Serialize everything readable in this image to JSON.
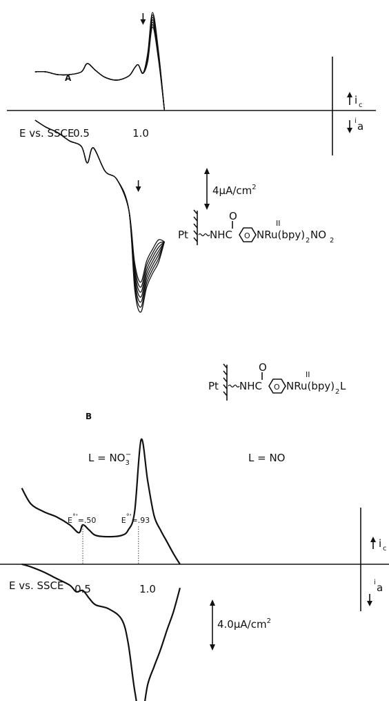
{
  "chart_data": [
    {
      "type": "line",
      "panel_label": "A",
      "xlabel": "E vs. SSCE",
      "x_ticks": [
        1.0,
        0.5
      ],
      "x_tick_labels": [
        "1.0",
        "0.5"
      ],
      "current_labels": {
        "cathodic": "i",
        "cathodic_sub": "c",
        "anodic": "i",
        "anodic_sub": "a"
      },
      "scale_bar": {
        "value": 4,
        "unit": "µA/cm2",
        "prefix": "4µA/cm",
        "sup": "2"
      },
      "scan_count": 7,
      "cycle_arrows": [
        1.02,
        0.98
      ],
      "series": [
        {
          "x": [
            0.11,
            0.2,
            0.3,
            0.4,
            0.5,
            0.55,
            0.62,
            0.7,
            0.8,
            0.9,
            0.95,
            0.98,
            1.02,
            1.06,
            1.1,
            1.15,
            1.2
          ],
          "y": [
            2.8,
            2.8,
            2.6,
            2.6,
            2.8,
            3.4,
            2.9,
            2.4,
            2.2,
            2.5,
            3.1,
            3.3,
            2.7,
            4.2,
            7.1,
            4.3,
            0
          ]
        },
        {
          "x": [
            1.2,
            1.15,
            1.1,
            1.05,
            1.0,
            0.95,
            0.9,
            0.8,
            0.7,
            0.6,
            0.55,
            0.5,
            0.4,
            0.3,
            0.2,
            0.11
          ],
          "y": [
            -9.5,
            -11.0,
            -11.8,
            -12.8,
            -14.6,
            -13.0,
            -7.2,
            -5.0,
            -4.4,
            -2.7,
            -3.8,
            -2.6,
            -2.2,
            -1.6,
            -1.2,
            -0.7
          ]
        }
      ],
      "structure_label": {
        "pt": "Pt",
        "chain": "NHC",
        "ring": "O",
        "metal": "NRu(bpy)",
        "ligand_sub": "2",
        "ligand": "NO",
        "ligand_end": "2",
        "oxidation": "II",
        "carbonyl": "O"
      }
    },
    {
      "type": "line",
      "panel_label": "B",
      "xlabel": "E vs. SSCE",
      "x_ticks": [
        1.0,
        0.5
      ],
      "x_tick_labels": [
        "1.0",
        "0.5"
      ],
      "current_labels": {
        "cathodic": "i",
        "cathodic_sub": "c",
        "anodic": "i",
        "anodic_sub": "a"
      },
      "scale_bar": {
        "value": 4.0,
        "unit": "µA/cm2",
        "prefix": "4.0µA/cm",
        "sup": "2"
      },
      "regions": [
        {
          "prefix": "L = NO",
          "sub": "3",
          "sup": "−"
        },
        {
          "prefix": "L = NO",
          "sub": "",
          "sup": ""
        }
      ],
      "formal_potentials": [
        {
          "label": "E",
          "sup": "°'",
          "value": "=.93",
          "x": 0.93
        },
        {
          "label": "E",
          "sup": "°'",
          "value": "=.50",
          "x": 0.5
        }
      ],
      "series": [
        {
          "x": [
            0.03,
            0.1,
            0.2,
            0.3,
            0.4,
            0.47,
            0.5,
            0.55,
            0.6,
            0.7,
            0.8,
            0.85,
            0.9,
            0.95,
            1.0,
            1.05,
            1.1,
            1.15,
            1.2,
            1.25
          ],
          "y": [
            5.8,
            4.6,
            4.0,
            3.6,
            3.0,
            2.4,
            3.0,
            2.6,
            2.2,
            2.1,
            2.2,
            2.6,
            4.0,
            9.5,
            6.4,
            3.7,
            2.6,
            1.7,
            0.8,
            0
          ]
        },
        {
          "x": [
            1.25,
            1.2,
            1.15,
            1.1,
            1.05,
            1.0,
            0.95,
            0.9,
            0.85,
            0.8,
            0.7,
            0.6,
            0.55,
            0.5,
            0.45,
            0.4,
            0.3,
            0.2,
            0.1,
            0.03
          ],
          "y": [
            -1.8,
            -3.6,
            -5.0,
            -6.5,
            -7.8,
            -9.2,
            -11.8,
            -9.6,
            -6.0,
            -4.2,
            -3.4,
            -3.1,
            -2.6,
            -2.0,
            -2.1,
            -1.6,
            -1.1,
            -0.6,
            -0.2,
            0
          ]
        }
      ],
      "structure_label": {
        "pt": "Pt",
        "chain": "NHC",
        "ring": "O",
        "metal": "NRu(bpy)",
        "ligand_sub": "2",
        "ligand": "L",
        "oxidation": "II",
        "carbonyl": "O"
      }
    }
  ]
}
